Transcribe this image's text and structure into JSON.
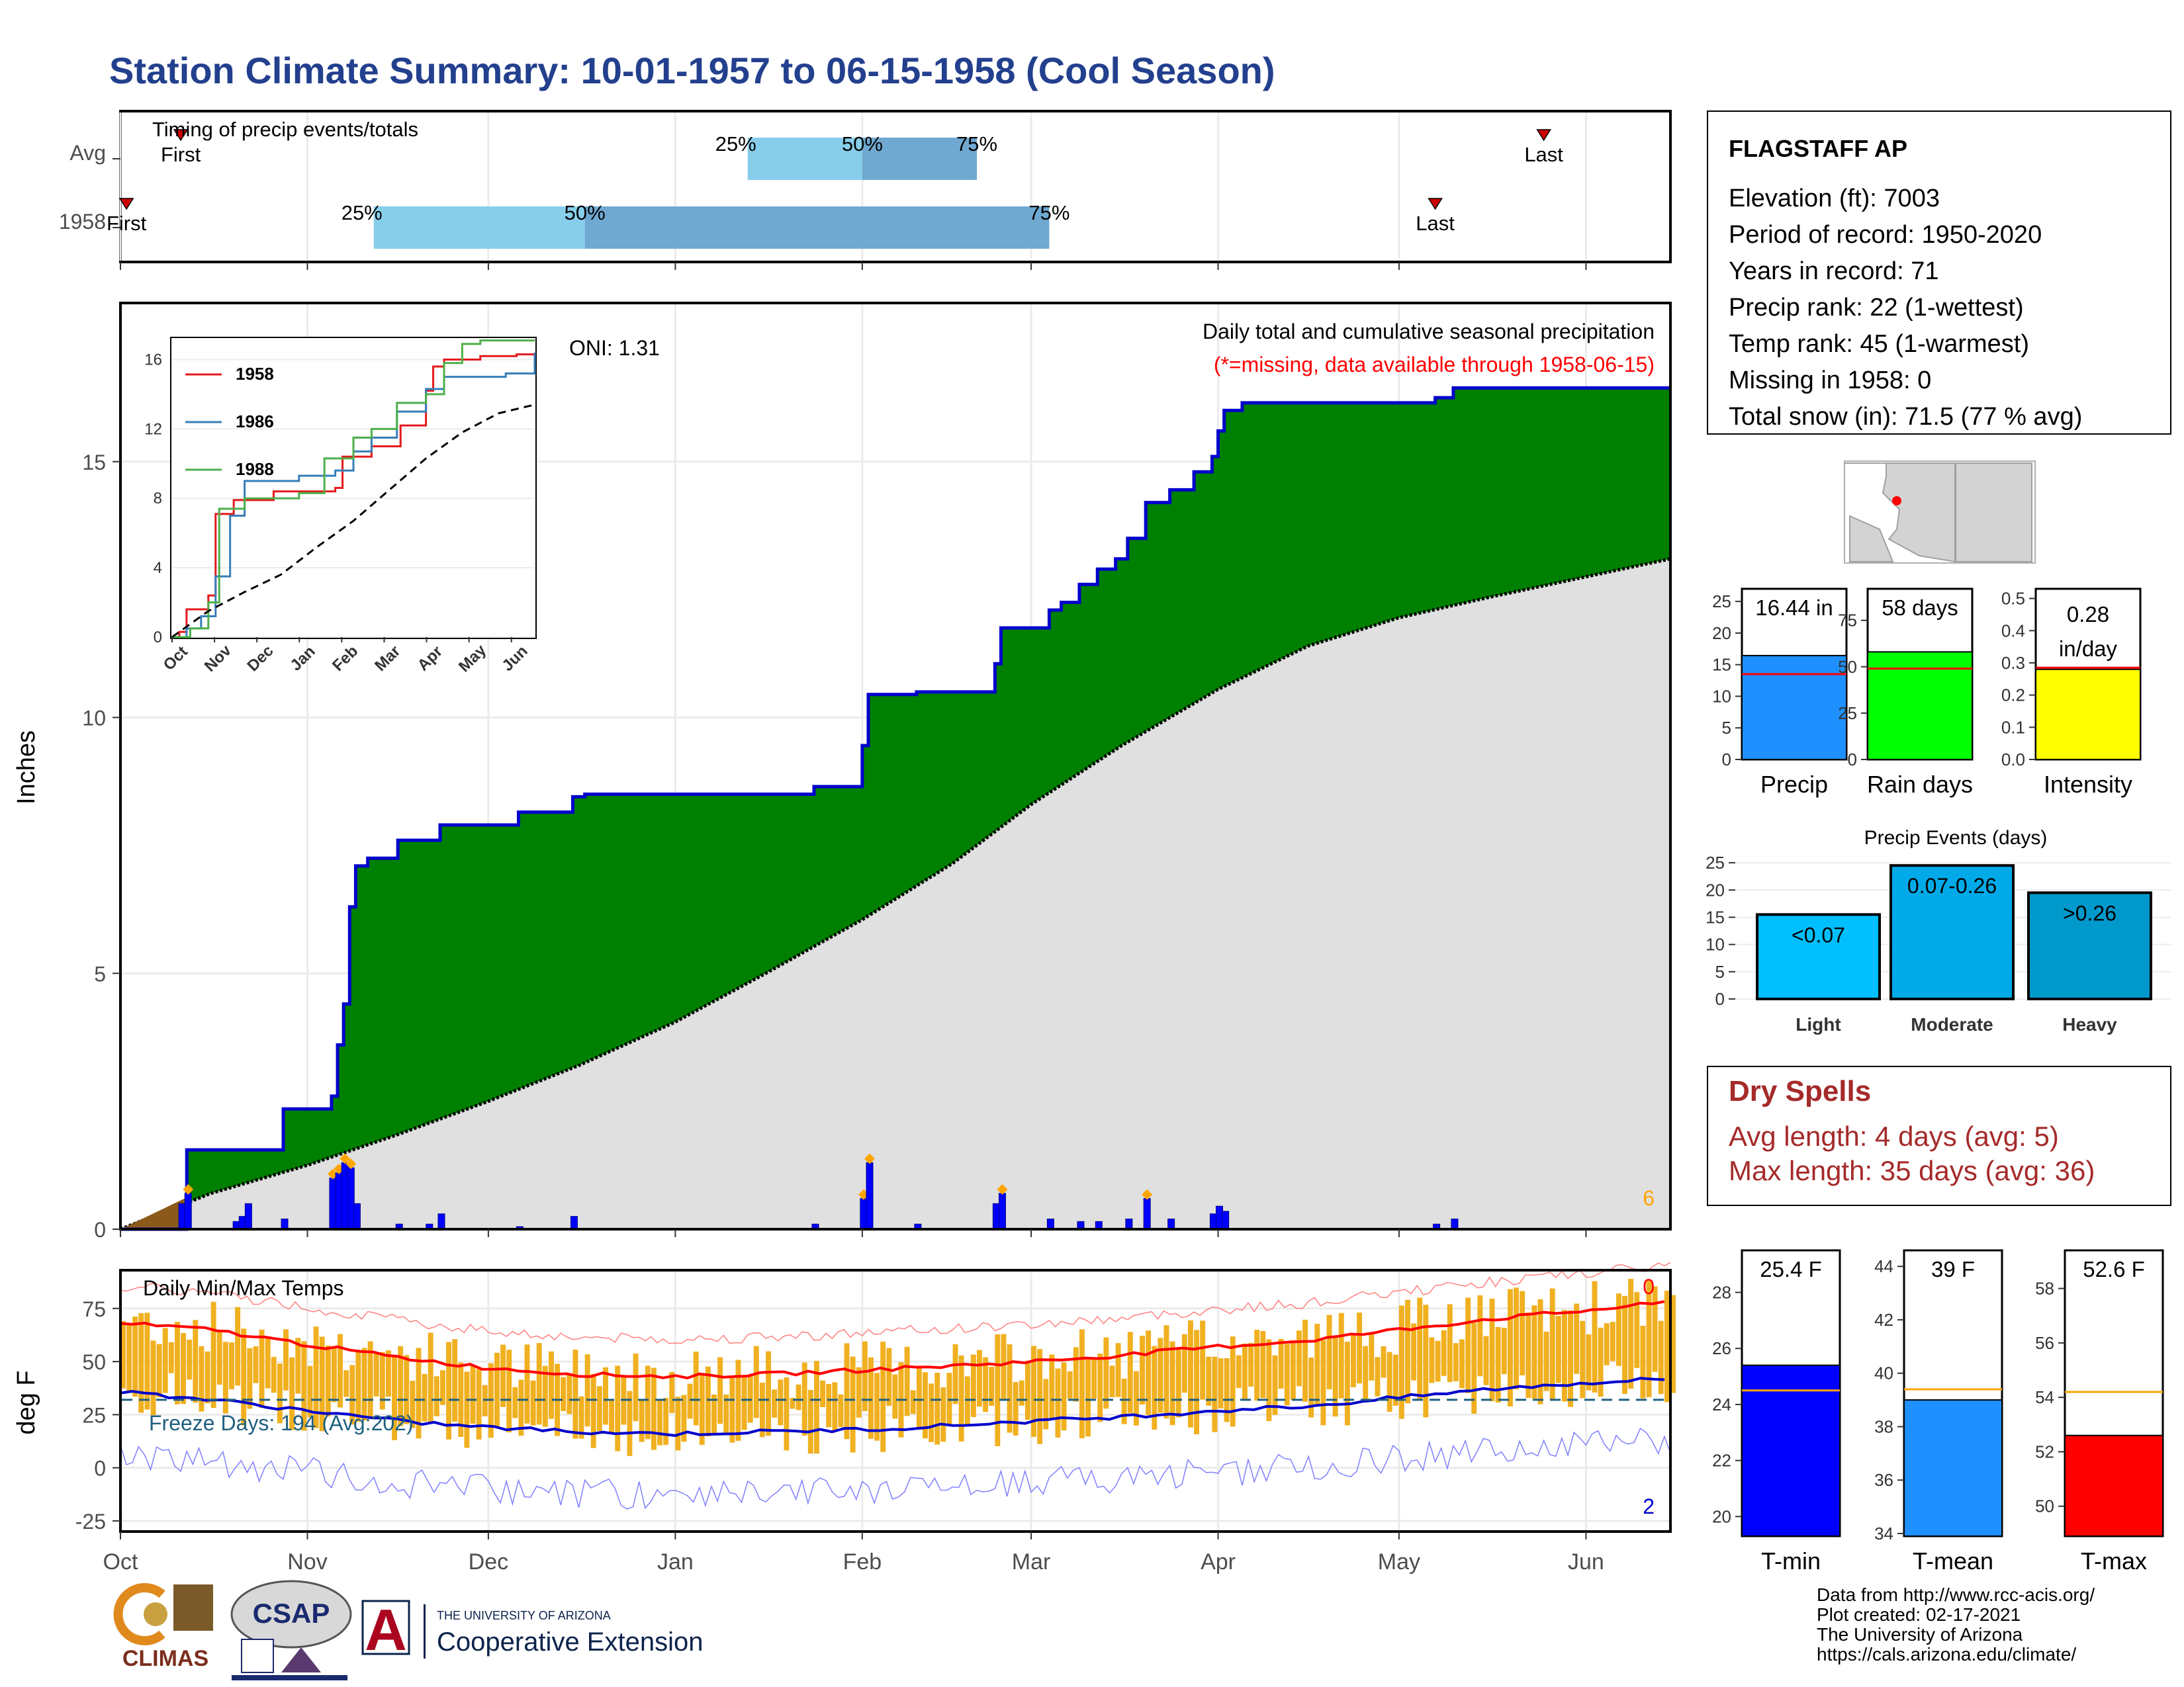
{
  "title": "Station Climate Summary: 10-01-1957 to 06-15-1958 (Cool Season)",
  "colors": {
    "title": "#23408e",
    "precip_fill": "#008000",
    "avg_fill": "#e0e0e0",
    "line_blue": "#0000cc",
    "q_light": "#87ceeb",
    "q_dark": "#6fa8d0",
    "freeze_line": "#1f5f7f",
    "bars_temp": "#f0b020",
    "tmax": "#ff0000",
    "tmin": "#0000cc"
  },
  "timing": {
    "label": "Timing of precip events/totals",
    "rows": [
      {
        "name": "Avg",
        "first_date": "1957-10-11",
        "q25_date": "1958-01-13",
        "q50_date": "1958-02-01",
        "q75_date": "1958-02-20",
        "last_date": "1958-05-25"
      },
      {
        "name": "1958",
        "first_date": "1957-10-02",
        "q25_date": "1957-11-12",
        "q50_date": "1957-12-17",
        "q75_date": "1958-03-04",
        "last_date": "1958-05-07"
      }
    ],
    "labels": {
      "first": "First",
      "last": "Last",
      "p25": "25%",
      "p50": "50%",
      "p75": "75%"
    }
  },
  "x_axis": {
    "ticks": [
      "Oct",
      "Nov",
      "Dec",
      "Jan",
      "Feb",
      "Mar",
      "Apr",
      "May",
      "Jun"
    ],
    "tick_dates": [
      "1957-10-01",
      "1957-11-01",
      "1957-12-01",
      "1958-01-01",
      "1958-02-01",
      "1958-03-01",
      "1958-04-01",
      "1958-05-01",
      "1958-06-01"
    ],
    "start": "1957-10-01",
    "end": "1958-06-15"
  },
  "precip": {
    "ylabel": "Inches",
    "yticks": [
      0,
      5,
      10,
      15
    ],
    "ylim": [
      0,
      18.1
    ],
    "caption1": "Daily total and cumulative seasonal precipitation",
    "caption2": "(*=missing, data available through 1958-06-15)",
    "oni": "ONI: 1.31",
    "corner_value": "6",
    "cumulative_steps": [
      [
        "1957-10-01",
        0.0
      ],
      [
        "1957-10-12",
        1.55
      ],
      [
        "1957-10-28",
        2.35
      ],
      [
        "1957-11-05",
        2.6
      ],
      [
        "1957-11-06",
        3.6
      ],
      [
        "1957-11-07",
        4.4
      ],
      [
        "1957-11-08",
        6.3
      ],
      [
        "1957-11-09",
        7.1
      ],
      [
        "1957-11-11",
        7.25
      ],
      [
        "1957-11-16",
        7.6
      ],
      [
        "1957-11-23",
        7.9
      ],
      [
        "1957-12-06",
        8.15
      ],
      [
        "1957-12-15",
        8.45
      ],
      [
        "1957-12-17",
        8.5
      ],
      [
        "1958-01-24",
        8.65
      ],
      [
        "1958-02-01",
        9.45
      ],
      [
        "1958-02-02",
        10.45
      ],
      [
        "1958-02-10",
        10.5
      ],
      [
        "1958-02-23",
        11.05
      ],
      [
        "1958-02-24",
        11.75
      ],
      [
        "1958-03-04",
        12.1
      ],
      [
        "1958-03-06",
        12.25
      ],
      [
        "1958-03-09",
        12.6
      ],
      [
        "1958-03-12",
        12.9
      ],
      [
        "1958-03-15",
        13.1
      ],
      [
        "1958-03-17",
        13.5
      ],
      [
        "1958-03-20",
        14.2
      ],
      [
        "1958-03-24",
        14.45
      ],
      [
        "1958-03-28",
        14.8
      ],
      [
        "1958-03-31",
        15.1
      ],
      [
        "1958-04-01",
        15.6
      ],
      [
        "1958-04-02",
        16.0
      ],
      [
        "1958-04-05",
        16.15
      ],
      [
        "1958-04-15",
        16.15
      ],
      [
        "1958-05-07",
        16.25
      ],
      [
        "1958-05-10",
        16.44
      ],
      [
        "1958-06-15",
        16.44
      ]
    ],
    "avg_cumulative": [
      [
        "1957-10-01",
        0.0
      ],
      [
        "1957-10-16",
        0.7
      ],
      [
        "1957-11-01",
        1.25
      ],
      [
        "1957-11-16",
        1.85
      ],
      [
        "1957-12-01",
        2.5
      ],
      [
        "1957-12-16",
        3.2
      ],
      [
        "1958-01-01",
        4.05
      ],
      [
        "1958-01-16",
        5.0
      ],
      [
        "1958-02-01",
        6.05
      ],
      [
        "1958-02-16",
        7.15
      ],
      [
        "1958-03-01",
        8.3
      ],
      [
        "1958-03-16",
        9.45
      ],
      [
        "1958-04-01",
        10.55
      ],
      [
        "1958-04-16",
        11.4
      ],
      [
        "1958-05-01",
        11.95
      ],
      [
        "1958-05-16",
        12.35
      ],
      [
        "1958-06-01",
        12.75
      ],
      [
        "1958-06-15",
        13.1
      ]
    ],
    "daily_bars": [
      [
        "1957-10-11",
        0.5
      ],
      [
        "1957-10-12",
        0.7
      ],
      [
        "1957-10-20",
        0.15
      ],
      [
        "1957-10-21",
        0.25
      ],
      [
        "1957-10-22",
        0.5
      ],
      [
        "1957-10-28",
        0.2
      ],
      [
        "1957-11-05",
        1.0
      ],
      [
        "1957-11-06",
        1.1
      ],
      [
        "1957-11-07",
        1.3
      ],
      [
        "1957-11-08",
        1.2
      ],
      [
        "1957-11-09",
        0.5
      ],
      [
        "1957-11-16",
        0.1
      ],
      [
        "1957-11-21",
        0.1
      ],
      [
        "1957-11-23",
        0.3
      ],
      [
        "1957-12-06",
        0.05
      ],
      [
        "1957-12-15",
        0.25
      ],
      [
        "1958-01-24",
        0.1
      ],
      [
        "1958-02-01",
        0.6
      ],
      [
        "1958-02-02",
        1.3
      ],
      [
        "1958-02-10",
        0.1
      ],
      [
        "1958-02-23",
        0.5
      ],
      [
        "1958-02-24",
        0.7
      ],
      [
        "1958-03-04",
        0.2
      ],
      [
        "1958-03-09",
        0.15
      ],
      [
        "1958-03-12",
        0.15
      ],
      [
        "1958-03-17",
        0.2
      ],
      [
        "1958-03-20",
        0.6
      ],
      [
        "1958-03-24",
        0.2
      ],
      [
        "1958-03-31",
        0.3
      ],
      [
        "1958-04-01",
        0.45
      ],
      [
        "1958-04-02",
        0.35
      ],
      [
        "1958-05-07",
        0.1
      ],
      [
        "1958-05-10",
        0.2
      ]
    ]
  },
  "inset": {
    "series": [
      {
        "name": "1958",
        "color": "#e31a1c"
      },
      {
        "name": "1986",
        "color": "#377eb8"
      },
      {
        "name": "1988",
        "color": "#4daf4a"
      }
    ],
    "yticks": [
      0,
      4,
      8,
      12,
      16
    ],
    "xticks": [
      "Oct",
      "Nov",
      "Dec",
      "Jan",
      "Feb",
      "Mar",
      "Apr",
      "May",
      "Jun"
    ]
  },
  "temps": {
    "label": "Daily Min/Max Temps",
    "ylabel": "deg F",
    "yticks": [
      -25,
      0,
      25,
      50,
      75
    ],
    "ylim": [
      -30,
      93
    ],
    "freeze_label": "Freeze Days: 194 (Avg:202)",
    "freeze_value": 32,
    "count_top": "0",
    "count_bottom": "2",
    "avg_max": [
      [
        "1957-10-01",
        68
      ],
      [
        "1957-10-16",
        65
      ],
      [
        "1957-11-01",
        58
      ],
      [
        "1957-11-16",
        52
      ],
      [
        "1957-12-01",
        47
      ],
      [
        "1957-12-16",
        44
      ],
      [
        "1958-01-01",
        43
      ],
      [
        "1958-01-16",
        44
      ],
      [
        "1958-02-01",
        46
      ],
      [
        "1958-02-16",
        48
      ],
      [
        "1958-03-01",
        50
      ],
      [
        "1958-03-16",
        53
      ],
      [
        "1958-04-01",
        57
      ],
      [
        "1958-04-16",
        60
      ],
      [
        "1958-05-01",
        65
      ],
      [
        "1958-05-16",
        70
      ],
      [
        "1958-06-01",
        74
      ],
      [
        "1958-06-15",
        78
      ]
    ],
    "avg_min": [
      [
        "1957-10-01",
        36
      ],
      [
        "1957-10-16",
        32
      ],
      [
        "1957-11-01",
        27
      ],
      [
        "1957-11-16",
        22
      ],
      [
        "1957-12-01",
        19
      ],
      [
        "1957-12-16",
        17
      ],
      [
        "1958-01-01",
        16
      ],
      [
        "1958-01-16",
        17
      ],
      [
        "1958-02-01",
        18
      ],
      [
        "1958-02-16",
        20
      ],
      [
        "1958-03-01",
        22
      ],
      [
        "1958-03-16",
        24
      ],
      [
        "1958-04-01",
        27
      ],
      [
        "1958-04-16",
        29
      ],
      [
        "1958-05-01",
        33
      ],
      [
        "1958-05-16",
        37
      ],
      [
        "1958-06-01",
        40
      ],
      [
        "1958-06-15",
        42
      ]
    ]
  },
  "station": {
    "name": "FLAGSTAFF AP",
    "lines": [
      "Elevation (ft): 7003",
      "Period of record: 1950-2020",
      "Years in record: 71",
      "Precip rank: 22 (1-wettest)",
      "Temp rank: 45 (1-warmest)",
      "Missing in 1958: 0",
      "Total snow (in): 71.5 (77 % avg)"
    ]
  },
  "mini_bars": [
    {
      "name": "Precip",
      "label": "16.44 in",
      "value": 16.44,
      "avg": 13.5,
      "ylim": [
        0,
        27
      ],
      "yticks": [
        0,
        5,
        10,
        15,
        20,
        25
      ],
      "color": "#1e90ff"
    },
    {
      "name": "Rain days",
      "label": "58 days",
      "value": 58,
      "avg": 49,
      "ylim": [
        0,
        92
      ],
      "yticks": [
        0,
        25,
        50,
        75
      ],
      "color": "#00ff00"
    },
    {
      "name": "Intensity",
      "label_line1": "0.28",
      "label_line2": "in/day",
      "value": 0.28,
      "avg": 0.285,
      "ylim": [
        0,
        0.53
      ],
      "yticks": [
        0.0,
        0.1,
        0.2,
        0.3,
        0.4,
        0.5
      ],
      "color": "#ffff00"
    }
  ],
  "events": {
    "title": "Precip Events (days)",
    "yticks": [
      0,
      5,
      10,
      15,
      20,
      25
    ],
    "ylim": [
      0,
      25.5
    ],
    "bars": [
      {
        "name": "Light",
        "label": "<0.07",
        "value": 15.5,
        "color": "#00bfff"
      },
      {
        "name": "Moderate",
        "label": "0.07-0.26",
        "value": 24.5,
        "color": "#00aae8"
      },
      {
        "name": "Heavy",
        "label": ">0.26",
        "value": 19.5,
        "color": "#0099cc"
      }
    ]
  },
  "dry_spells": {
    "title": "Dry Spells",
    "avg_line": "Avg length: 4 days (avg: 5)",
    "max_line": "Max length: 35 days (avg: 36)",
    "color": "#a52a2a"
  },
  "temp_bars": [
    {
      "name": "T-min",
      "label": "25.4 F",
      "value": 25.4,
      "avg": 24.5,
      "ylim": [
        19.3,
        29.5
      ],
      "yticks": [
        20,
        22,
        24,
        26,
        28
      ],
      "color": "#0000ff"
    },
    {
      "name": "T-mean",
      "label": "39 F",
      "value": 39.0,
      "avg": 39.4,
      "ylim": [
        33.9,
        44.6
      ],
      "yticks": [
        34,
        36,
        38,
        40,
        42,
        44
      ],
      "color": "#1e90ff"
    },
    {
      "name": "T-max",
      "label": "52.6 F",
      "value": 52.6,
      "avg": 54.2,
      "ylim": [
        48.9,
        59.4
      ],
      "yticks": [
        50,
        52,
        54,
        56,
        58
      ],
      "color": "#ff0000"
    }
  ],
  "footer": {
    "lines": [
      "Data from http://www.rcc-acis.org/",
      "Plot created: 02-17-2021",
      "The University of Arizona",
      "https://cals.arizona.edu/climate/"
    ],
    "logo_climas": "CLIMAS",
    "logo_csap": "CSAP",
    "logo_ua_small": "THE UNIVERSITY OF ARIZONA",
    "logo_ua_big": "Cooperative Extension",
    "ua_letter": "A"
  }
}
